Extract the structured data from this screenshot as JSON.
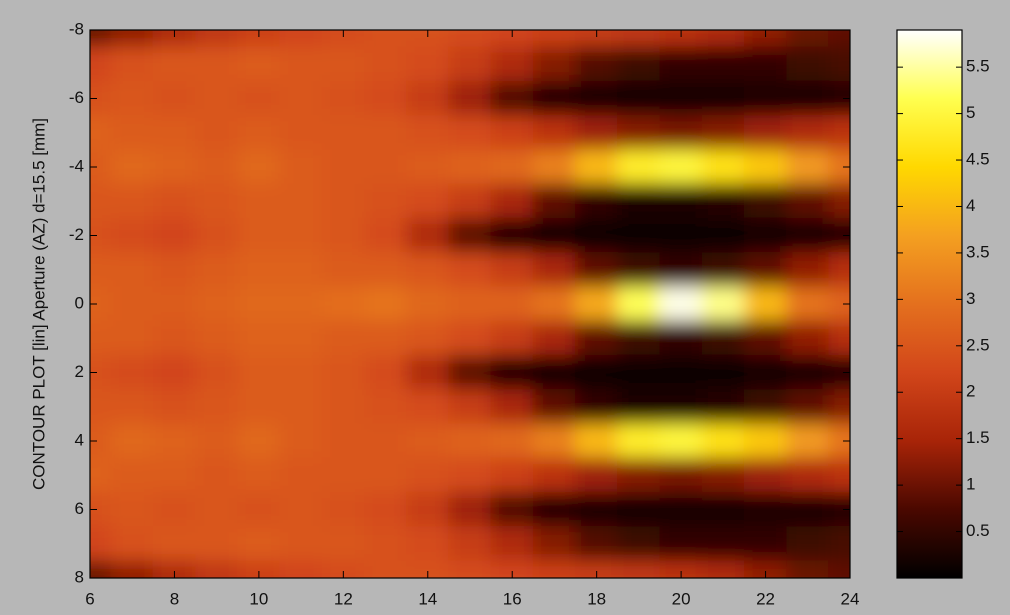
{
  "chart_data": {
    "type": "heatmap",
    "ylabel": "CONTOUR PLOT [lin]  Aperture (AZ) d=15.5 [mm]",
    "x": [
      6,
      7,
      8,
      9,
      10,
      11,
      12,
      13,
      14,
      15,
      16,
      17,
      18,
      19,
      20,
      21,
      22,
      23,
      24
    ],
    "y": [
      -8,
      -7,
      -6,
      -5,
      -4,
      -3,
      -2,
      -1,
      0,
      1,
      2,
      3,
      4,
      5,
      6,
      7,
      8
    ],
    "z": [
      [
        1.0,
        1.3,
        1.6,
        1.9,
        2.1,
        2.2,
        2.3,
        2.4,
        2.4,
        2.3,
        2.2,
        2.1,
        2.0,
        1.9,
        1.8,
        1.6,
        1.3,
        1.0,
        0.9
      ],
      [
        2.2,
        2.4,
        2.5,
        2.5,
        2.6,
        2.5,
        2.5,
        2.4,
        2.3,
        2.0,
        1.6,
        1.2,
        0.8,
        0.6,
        0.5,
        0.5,
        0.5,
        0.6,
        0.7
      ],
      [
        2.4,
        2.5,
        2.4,
        2.5,
        2.4,
        2.5,
        2.4,
        2.3,
        2.0,
        1.4,
        0.8,
        0.4,
        0.3,
        0.2,
        0.2,
        0.2,
        0.3,
        0.3,
        0.4
      ],
      [
        2.7,
        2.6,
        2.6,
        2.5,
        2.6,
        2.5,
        2.5,
        2.5,
        2.4,
        2.3,
        2.1,
        1.8,
        1.4,
        1.2,
        1.1,
        1.2,
        1.4,
        1.6,
        1.8
      ],
      [
        2.6,
        2.8,
        2.7,
        2.6,
        2.8,
        2.6,
        2.5,
        2.5,
        2.6,
        2.7,
        2.8,
        3.2,
        4.0,
        4.8,
        5.0,
        4.6,
        4.2,
        3.6,
        3.0
      ],
      [
        2.5,
        2.5,
        2.4,
        2.5,
        2.6,
        2.6,
        2.5,
        2.4,
        2.3,
        2.0,
        1.5,
        0.9,
        0.5,
        0.3,
        0.3,
        0.4,
        0.6,
        0.9,
        1.2
      ],
      [
        2.4,
        2.3,
        2.2,
        2.4,
        2.6,
        2.6,
        2.5,
        2.3,
        1.6,
        0.9,
        0.4,
        0.2,
        0.1,
        0.1,
        0.1,
        0.1,
        0.2,
        0.3,
        0.4
      ],
      [
        2.6,
        2.6,
        2.5,
        2.6,
        2.7,
        2.7,
        2.6,
        2.6,
        2.5,
        2.3,
        2.0,
        1.5,
        0.9,
        0.6,
        0.5,
        0.6,
        0.9,
        1.3,
        1.7
      ],
      [
        2.7,
        2.6,
        2.6,
        2.7,
        2.8,
        2.8,
        2.9,
        3.0,
        2.8,
        2.7,
        2.7,
        3.0,
        3.8,
        5.2,
        5.8,
        5.4,
        4.0,
        3.0,
        2.7
      ],
      [
        2.6,
        2.6,
        2.5,
        2.6,
        2.7,
        2.7,
        2.6,
        2.6,
        2.5,
        2.3,
        2.0,
        1.5,
        0.9,
        0.6,
        0.5,
        0.6,
        0.9,
        1.3,
        1.7
      ],
      [
        2.4,
        2.3,
        2.2,
        2.4,
        2.6,
        2.6,
        2.5,
        2.3,
        1.6,
        0.9,
        0.4,
        0.2,
        0.1,
        0.1,
        0.1,
        0.1,
        0.2,
        0.3,
        0.4
      ],
      [
        2.5,
        2.5,
        2.4,
        2.5,
        2.6,
        2.6,
        2.5,
        2.4,
        2.3,
        2.0,
        1.5,
        0.9,
        0.5,
        0.3,
        0.3,
        0.4,
        0.6,
        0.9,
        1.2
      ],
      [
        2.6,
        2.8,
        2.7,
        2.6,
        2.8,
        2.6,
        2.5,
        2.5,
        2.6,
        2.7,
        2.8,
        3.2,
        4.0,
        4.8,
        5.0,
        4.6,
        4.2,
        3.6,
        3.0
      ],
      [
        2.7,
        2.6,
        2.6,
        2.5,
        2.6,
        2.5,
        2.5,
        2.5,
        2.4,
        2.3,
        2.1,
        1.8,
        1.4,
        1.2,
        1.1,
        1.2,
        1.4,
        1.6,
        1.8
      ],
      [
        2.4,
        2.5,
        2.4,
        2.5,
        2.4,
        2.5,
        2.4,
        2.3,
        2.0,
        1.4,
        0.8,
        0.4,
        0.3,
        0.2,
        0.2,
        0.2,
        0.3,
        0.3,
        0.4
      ],
      [
        2.2,
        2.4,
        2.5,
        2.5,
        2.6,
        2.5,
        2.5,
        2.4,
        2.3,
        2.0,
        1.6,
        1.2,
        0.8,
        0.6,
        0.5,
        0.5,
        0.5,
        0.6,
        0.7
      ],
      [
        1.0,
        1.3,
        1.6,
        1.9,
        2.1,
        2.2,
        2.3,
        2.4,
        2.4,
        2.3,
        2.2,
        2.1,
        2.0,
        1.9,
        1.8,
        1.6,
        1.3,
        1.0,
        0.9
      ]
    ],
    "xlim": [
      6,
      24
    ],
    "xticks": [
      6,
      8,
      10,
      12,
      14,
      16,
      18,
      20,
      22,
      24
    ],
    "ylim": [
      -8,
      8
    ],
    "yticks": [
      -8,
      -6,
      -4,
      -2,
      0,
      2,
      4,
      6,
      8
    ],
    "y_reversed": true,
    "clim": [
      0,
      5.9
    ],
    "cticks": [
      0.5,
      1,
      1.5,
      2,
      2.5,
      3,
      3.5,
      4,
      4.5,
      5,
      5.5
    ],
    "colormap": [
      "#000000",
      "#4a0800",
      "#a82408",
      "#d2461a",
      "#e4701e",
      "#f4a020",
      "#ffd800",
      "#ffff50",
      "#ffffff"
    ]
  }
}
